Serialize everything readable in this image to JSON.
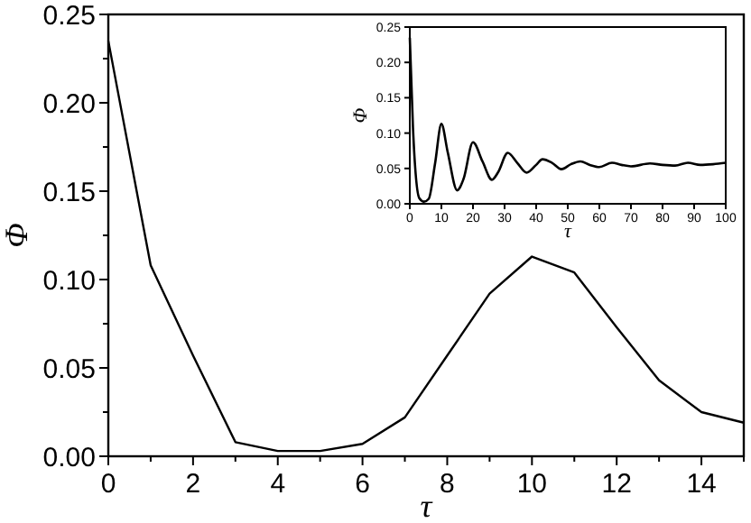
{
  "chart_data": [
    {
      "type": "line",
      "xlabel": "τ",
      "ylabel": "Φ",
      "x": [
        0,
        1,
        2,
        3,
        4,
        5,
        6,
        7,
        8,
        9,
        10,
        11,
        12,
        13,
        14,
        15
      ],
      "series": [
        {
          "color": "#000000",
          "values": [
            0.235,
            0.108,
            0.057,
            0.008,
            0.003,
            0.003,
            0.007,
            0.022,
            0.057,
            0.092,
            0.113,
            0.104,
            0.073,
            0.043,
            0.025,
            0.019
          ]
        }
      ],
      "xlim": [
        0,
        15
      ],
      "ylim": [
        0,
        0.25
      ],
      "xticks": [
        0,
        {
          "value": 1,
          "label": null
        },
        2,
        {
          "value": 3,
          "label": null
        },
        4,
        {
          "value": 5,
          "label": null
        },
        6,
        {
          "value": 7,
          "label": null
        },
        8,
        {
          "value": 9,
          "label": null
        },
        10,
        {
          "value": 11,
          "label": null
        },
        12,
        {
          "value": 13,
          "label": null
        },
        14,
        {
          "value": 15,
          "label": null
        }
      ],
      "yticks": [
        {
          "value": 0,
          "label": "0.00"
        },
        {
          "value": 0.025,
          "label": null
        },
        {
          "value": 0.05,
          "label": "0.05"
        },
        {
          "value": 0.075,
          "label": null
        },
        {
          "value": 0.1,
          "label": "0.10"
        },
        {
          "value": 0.125,
          "label": null
        },
        {
          "value": 0.15,
          "label": "0.15"
        },
        {
          "value": 0.175,
          "label": null
        },
        {
          "value": 0.2,
          "label": "0.20"
        },
        {
          "value": 0.225,
          "label": null
        },
        {
          "value": 0.25,
          "label": "0.25"
        }
      ],
      "grid": false,
      "marker": "none",
      "line_style": "solid"
    },
    {
      "type": "line",
      "xlabel": "τ",
      "ylabel": "Φ",
      "x": [
        0,
        1,
        3,
        4.5,
        6,
        8,
        10,
        12,
        15,
        17,
        20,
        23,
        26,
        28,
        31,
        34,
        37,
        40,
        42,
        45,
        48,
        51,
        54,
        57,
        60,
        64,
        67,
        70,
        76,
        80,
        84,
        88,
        92,
        96,
        100
      ],
      "series": [
        {
          "color": "#000000",
          "values": [
            0.235,
            0.108,
            0.008,
            0.003,
            0.007,
            0.057,
            0.113,
            0.073,
            0.019,
            0.035,
            0.087,
            0.06,
            0.034,
            0.045,
            0.072,
            0.058,
            0.044,
            0.055,
            0.063,
            0.058,
            0.049,
            0.056,
            0.06,
            0.055,
            0.052,
            0.058,
            0.055,
            0.053,
            0.057,
            0.055,
            0.054,
            0.058,
            0.055,
            0.056,
            0.058
          ]
        }
      ],
      "xlim": [
        0,
        100
      ],
      "ylim": [
        0,
        0.25
      ],
      "xticks": [
        0,
        10,
        20,
        30,
        40,
        50,
        60,
        70,
        80,
        90,
        100
      ],
      "yticks": [
        {
          "value": 0,
          "label": "0.00"
        },
        {
          "value": 0.05,
          "label": "0.05"
        },
        {
          "value": 0.1,
          "label": "0.10"
        },
        {
          "value": 0.15,
          "label": "0.15"
        },
        {
          "value": 0.2,
          "label": "0.20"
        },
        {
          "value": 0.25,
          "label": "0.25"
        }
      ],
      "grid": false,
      "marker": "none",
      "line_style": "solid"
    }
  ]
}
